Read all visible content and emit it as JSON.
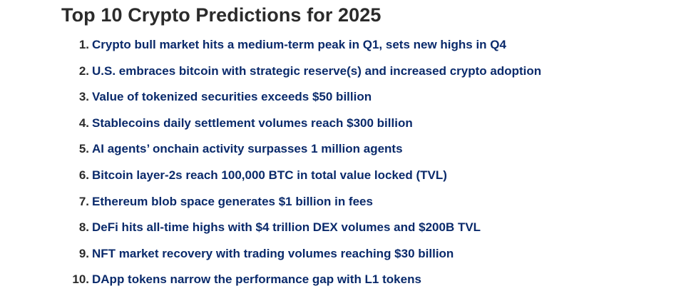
{
  "title": "Top 10 Crypto Predictions for 2025",
  "items": [
    {
      "number": "1.",
      "text": "Crypto bull market hits a medium-term peak in Q1, sets new highs in Q4"
    },
    {
      "number": "2.",
      "text": "U.S. embraces bitcoin with strategic reserve(s) and increased crypto adoption"
    },
    {
      "number": "3.",
      "text": "Value of tokenized securities exceeds $50 billion"
    },
    {
      "number": "4.",
      "text": "Stablecoins daily settlement volumes reach $300 billion"
    },
    {
      "number": "5.",
      "text": "AI agents’ onchain activity surpasses 1 million agents"
    },
    {
      "number": "6.",
      "text": "Bitcoin layer-2s reach 100,000 BTC in total value locked (TVL)"
    },
    {
      "number": "7.",
      "text": "Ethereum blob space generates $1 billion in fees"
    },
    {
      "number": "8.",
      "text": "DeFi hits all-time highs with $4 trillion DEX volumes and $200B TVL"
    },
    {
      "number": "9.",
      "text": "NFT market recovery with trading volumes reaching $30 billion"
    },
    {
      "number": "10.",
      "text": "DApp tokens narrow the performance gap with L1 tokens"
    }
  ]
}
